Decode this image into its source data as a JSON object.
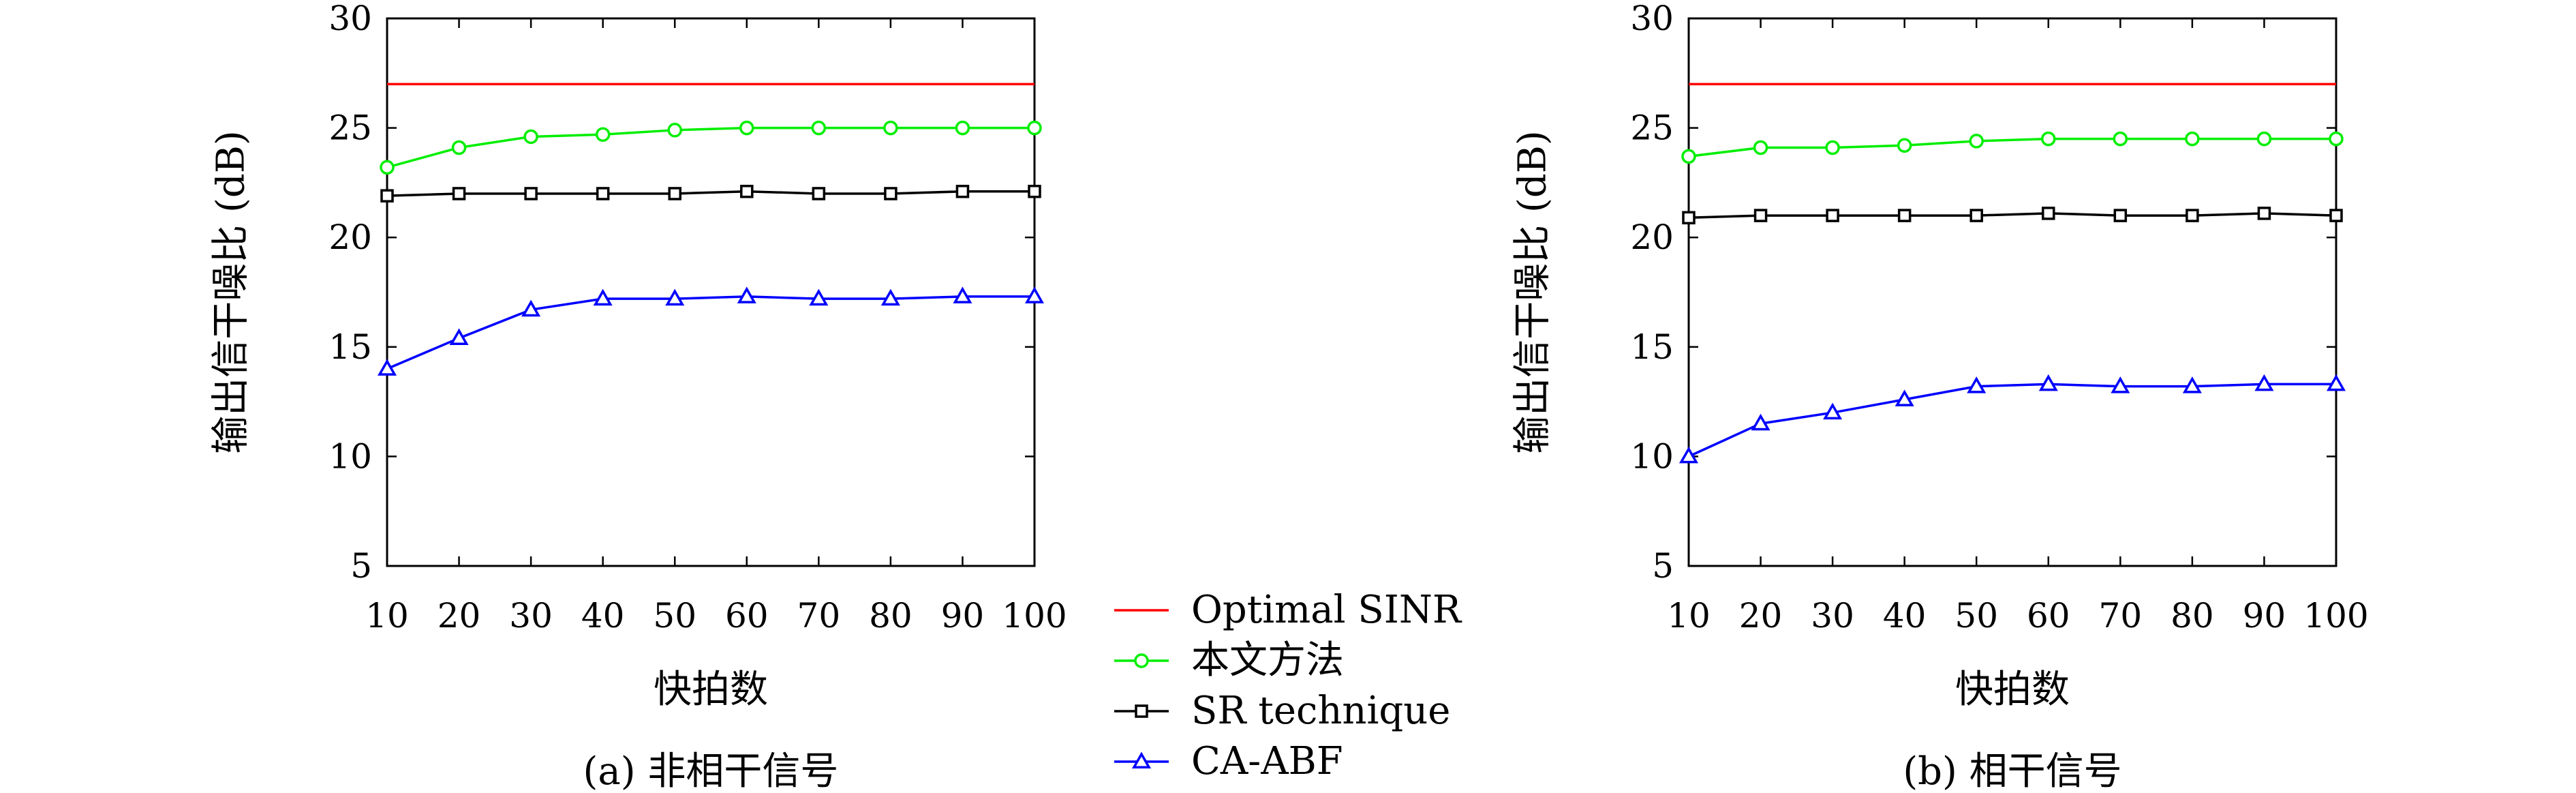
{
  "legend": {
    "items": [
      {
        "label": "Optimal SINR",
        "color": "#ff0000",
        "marker": "none"
      },
      {
        "label": "本文方法",
        "color": "#00ee00",
        "marker": "circle"
      },
      {
        "label": "SR technique",
        "color": "#000000",
        "marker": "square"
      },
      {
        "label": "CA-ABF",
        "color": "#0000ff",
        "marker": "triangle"
      }
    ]
  },
  "chart_data": [
    {
      "type": "line",
      "caption": "(a) 非相干信号",
      "xlabel": "快拍数",
      "ylabel": "输出信干噪比 (dB)",
      "xlim": [
        10,
        100
      ],
      "ylim": [
        5,
        30
      ],
      "xticks": [
        10,
        20,
        30,
        40,
        50,
        60,
        70,
        80,
        90,
        100
      ],
      "yticks": [
        5,
        10,
        15,
        20,
        25,
        30
      ],
      "grid": false,
      "x": [
        10,
        20,
        30,
        40,
        50,
        60,
        70,
        80,
        90,
        100
      ],
      "series": [
        {
          "name": "Optimal SINR",
          "values": [
            27,
            27,
            27,
            27,
            27,
            27,
            27,
            27,
            27,
            27
          ]
        },
        {
          "name": "本文方法",
          "values": [
            23.2,
            24.1,
            24.6,
            24.7,
            24.9,
            25.0,
            25.0,
            25.0,
            25.0,
            25.0
          ]
        },
        {
          "name": "SR technique",
          "values": [
            21.9,
            22.0,
            22.0,
            22.0,
            22.0,
            22.1,
            22.0,
            22.0,
            22.1,
            22.1
          ]
        },
        {
          "name": "CA-ABF",
          "values": [
            14.0,
            15.4,
            16.7,
            17.2,
            17.2,
            17.3,
            17.2,
            17.2,
            17.3,
            17.3
          ]
        }
      ]
    },
    {
      "type": "line",
      "caption": "(b) 相干信号",
      "xlabel": "快拍数",
      "ylabel": "输出信干噪比 (dB)",
      "xlim": [
        10,
        100
      ],
      "ylim": [
        5,
        30
      ],
      "xticks": [
        10,
        20,
        30,
        40,
        50,
        60,
        70,
        80,
        90,
        100
      ],
      "yticks": [
        5,
        10,
        15,
        20,
        25,
        30
      ],
      "grid": false,
      "x": [
        10,
        20,
        30,
        40,
        50,
        60,
        70,
        80,
        90,
        100
      ],
      "series": [
        {
          "name": "Optimal SINR",
          "values": [
            27,
            27,
            27,
            27,
            27,
            27,
            27,
            27,
            27,
            27
          ]
        },
        {
          "name": "本文方法",
          "values": [
            23.7,
            24.1,
            24.1,
            24.2,
            24.4,
            24.5,
            24.5,
            24.5,
            24.5,
            24.5
          ]
        },
        {
          "name": "SR technique",
          "values": [
            20.9,
            21.0,
            21.0,
            21.0,
            21.0,
            21.1,
            21.0,
            21.0,
            21.1,
            21.0
          ]
        },
        {
          "name": "CA-ABF",
          "values": [
            10.0,
            11.5,
            12.0,
            12.6,
            13.2,
            13.3,
            13.2,
            13.2,
            13.3,
            13.3
          ]
        }
      ]
    }
  ]
}
